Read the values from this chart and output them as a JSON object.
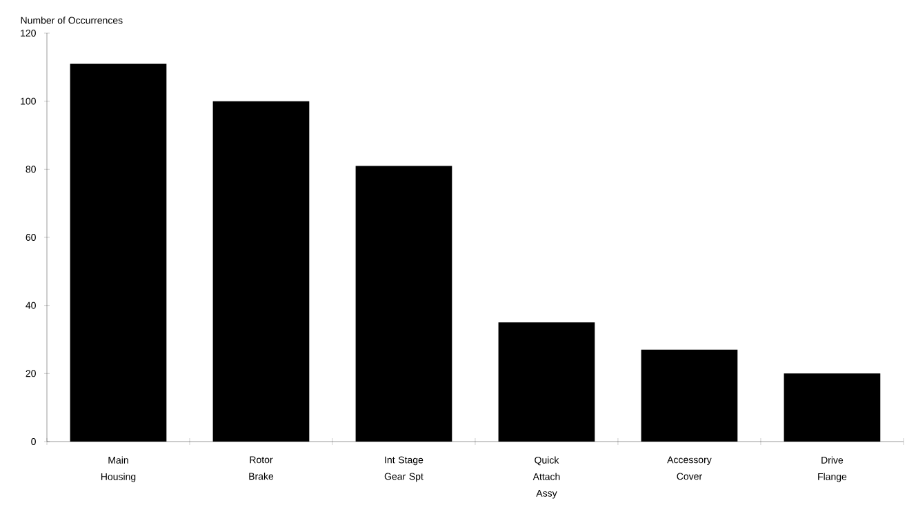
{
  "chart_data": {
    "type": "bar",
    "ylabel": "Number of Occurrences",
    "categories": [
      "Main Housing",
      "Rotor Brake",
      "Int Stage Gear Spt",
      "Quick Attach Assy",
      "Accessory Cover",
      "Drive Flange"
    ],
    "values": [
      111,
      100,
      81,
      35,
      27,
      20
    ],
    "color": "#000000",
    "ylim": [
      0,
      120
    ],
    "yticks": [
      0,
      20,
      40,
      60,
      80,
      100,
      120
    ],
    "grid": false
  }
}
